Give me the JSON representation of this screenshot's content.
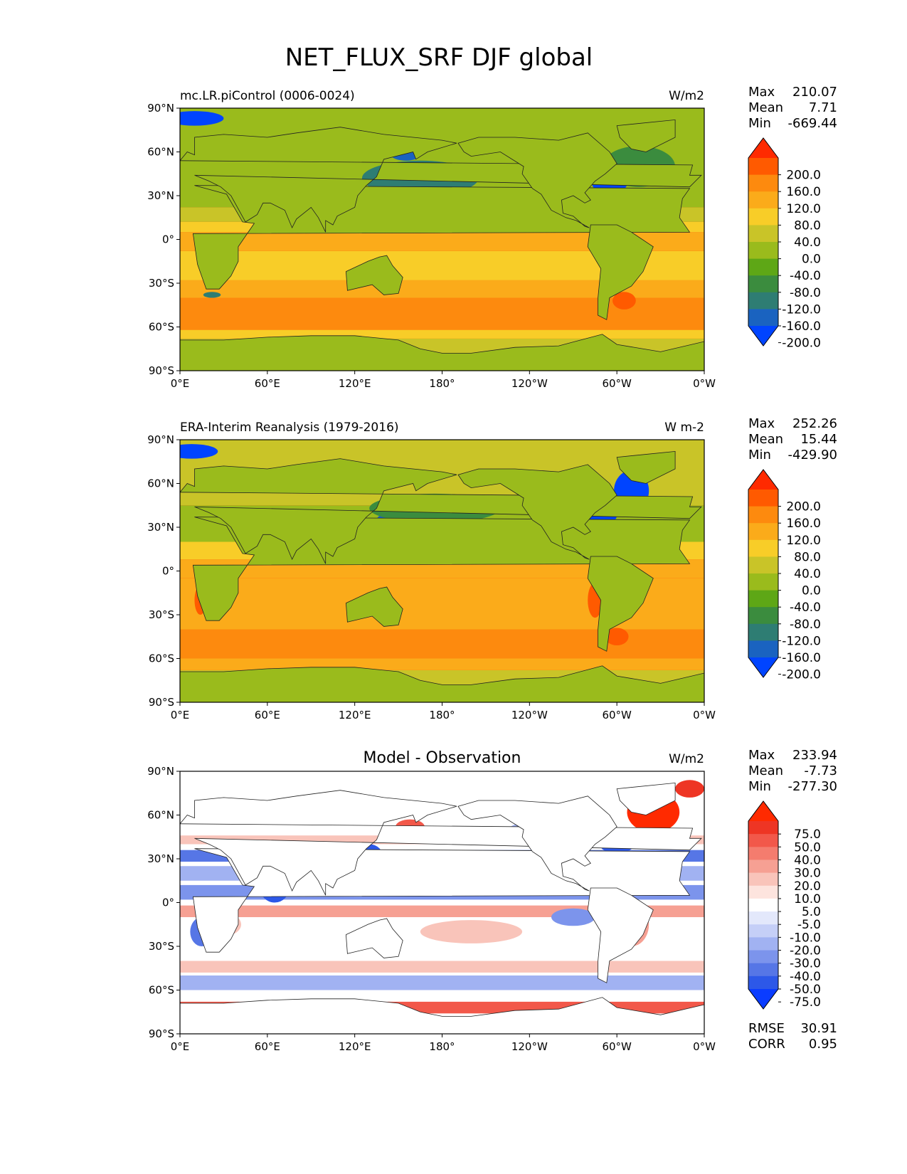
{
  "figure_title": "NET_FLUX_SRF DJF global",
  "chart_data": [
    {
      "type": "heatmap",
      "title": "mc.LR.piControl (0006-0024)",
      "units": "W/m2",
      "stats": [
        {
          "label": "Max",
          "value": "210.07"
        },
        {
          "label": "Mean",
          "value": "7.71"
        },
        {
          "label": "Min",
          "value": "-669.44"
        }
      ],
      "xlim": [
        0,
        360
      ],
      "ylim": [
        -90,
        90
      ],
      "x_ticks": [
        "0°E",
        "60°E",
        "120°E",
        "180°",
        "120°W",
        "60°W",
        "0°W"
      ],
      "y_ticks": [
        "90°N",
        "60°N",
        "30°N",
        "0°",
        "30°S",
        "60°S",
        "90°S"
      ],
      "colorbar": {
        "labels": [
          "200.0",
          "160.0",
          "120.0",
          "80.0",
          "40.0",
          "0.0",
          "-40.0",
          "-80.0",
          "-120.0",
          "-160.0",
          "-200.0"
        ],
        "colors": [
          "#ff2a00",
          "#ff5a00",
          "#fd8a0e",
          "#fbab1a",
          "#f8cd28",
          "#c9c428",
          "#9abb1c",
          "#5ea716",
          "#3b8c3e",
          "#2e7d73",
          "#1a63c0",
          "#0044ff"
        ]
      }
    },
    {
      "type": "heatmap",
      "title": "ERA-Interim Reanalysis (1979-2016)",
      "units": "W m-2",
      "stats": [
        {
          "label": "Max",
          "value": "252.26"
        },
        {
          "label": "Mean",
          "value": "15.44"
        },
        {
          "label": "Min",
          "value": "-429.90"
        }
      ],
      "xlim": [
        0,
        360
      ],
      "ylim": [
        -90,
        90
      ],
      "x_ticks": [
        "0°E",
        "60°E",
        "120°E",
        "180°",
        "120°W",
        "60°W",
        "0°W"
      ],
      "y_ticks": [
        "90°N",
        "60°N",
        "30°N",
        "0°",
        "30°S",
        "60°S",
        "90°S"
      ],
      "colorbar": {
        "labels": [
          "200.0",
          "160.0",
          "120.0",
          "80.0",
          "40.0",
          "0.0",
          "-40.0",
          "-80.0",
          "-120.0",
          "-160.0",
          "-200.0"
        ],
        "colors": [
          "#ff2a00",
          "#ff5a00",
          "#fd8a0e",
          "#fbab1a",
          "#f8cd28",
          "#c9c428",
          "#9abb1c",
          "#5ea716",
          "#3b8c3e",
          "#2e7d73",
          "#1a63c0",
          "#0044ff"
        ]
      }
    },
    {
      "type": "heatmap",
      "title": "Model - Observation",
      "units": "W/m2",
      "stats": [
        {
          "label": "Max",
          "value": "233.94"
        },
        {
          "label": "Mean",
          "value": "-7.73"
        },
        {
          "label": "Min",
          "value": "-277.30"
        }
      ],
      "footer_stats": [
        {
          "label": "RMSE",
          "value": "30.91"
        },
        {
          "label": "CORR",
          "value": "0.95"
        }
      ],
      "xlim": [
        0,
        360
      ],
      "ylim": [
        -90,
        90
      ],
      "x_ticks": [
        "0°E",
        "60°E",
        "120°E",
        "180°",
        "120°W",
        "60°W",
        "0°W"
      ],
      "y_ticks": [
        "90°N",
        "60°N",
        "30°N",
        "0°",
        "30°S",
        "60°S",
        "90°S"
      ],
      "colorbar": {
        "labels": [
          "75.0",
          "50.0",
          "40.0",
          "30.0",
          "20.0",
          "10.0",
          "5.0",
          "-5.0",
          "-10.0",
          "-20.0",
          "-30.0",
          "-40.0",
          "-50.0",
          "-75.0"
        ],
        "colors": [
          "#ff2a00",
          "#ee3524",
          "#f2584a",
          "#f47c6e",
          "#f6a093",
          "#f9c4ba",
          "#fde4de",
          "#ffffff",
          "#e3e8fb",
          "#c5cff7",
          "#a1b2f2",
          "#7c94ec",
          "#5676e6",
          "#2d58e8",
          "#0a3cff"
        ]
      }
    }
  ]
}
